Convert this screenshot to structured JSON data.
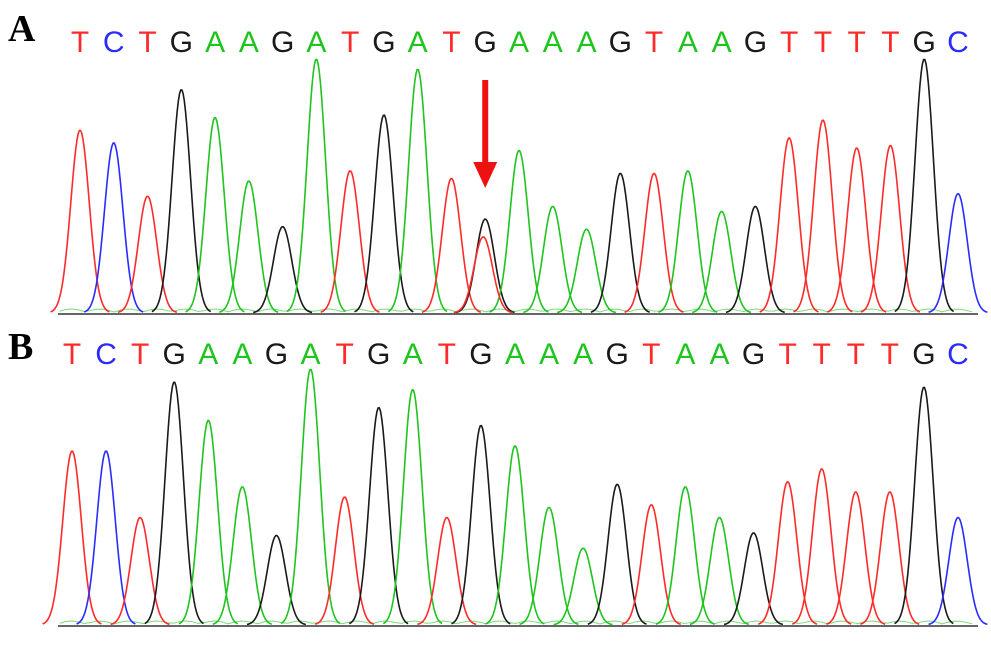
{
  "colors": {
    "A": "#1fc41f",
    "C": "#2b2bff",
    "G": "#1a1a1a",
    "T": "#ff2a2a",
    "arrow": "#ee1111"
  },
  "panels": [
    {
      "id": "a",
      "label": "A",
      "sequence": [
        "T",
        "C",
        "T",
        "G",
        "A",
        "A",
        "G",
        "A",
        "T",
        "G",
        "A",
        "T",
        "G",
        "A",
        "A",
        "A",
        "G",
        "T",
        "A",
        "A",
        "G",
        "T",
        "T",
        "T",
        "T",
        "G",
        "C"
      ],
      "peak_heights": [
        0.72,
        0.67,
        0.46,
        0.88,
        0.77,
        0.52,
        0.34,
        1.0,
        0.56,
        0.78,
        0.96,
        0.53,
        0.37,
        0.64,
        0.42,
        0.33,
        0.55,
        0.55,
        0.56,
        0.4,
        0.42,
        0.69,
        0.76,
        0.65,
        0.66,
        1.0,
        0.47
      ],
      "secondary_peaks": [
        {
          "index": 12,
          "base": "T",
          "height": 0.3
        }
      ],
      "arrow_at_index": 12
    },
    {
      "id": "b",
      "label": "B",
      "sequence": [
        "T",
        "C",
        "T",
        "G",
        "A",
        "A",
        "G",
        "A",
        "T",
        "G",
        "A",
        "T",
        "G",
        "A",
        "A",
        "A",
        "G",
        "T",
        "A",
        "A",
        "G",
        "T",
        "T",
        "T",
        "T",
        "G",
        "C"
      ],
      "peak_heights": [
        0.68,
        0.68,
        0.42,
        0.95,
        0.8,
        0.54,
        0.35,
        1.0,
        0.5,
        0.85,
        0.92,
        0.42,
        0.78,
        0.7,
        0.46,
        0.3,
        0.55,
        0.47,
        0.54,
        0.42,
        0.36,
        0.56,
        0.61,
        0.52,
        0.52,
        0.93,
        0.42
      ]
    }
  ]
}
